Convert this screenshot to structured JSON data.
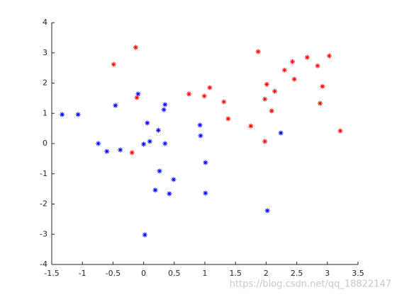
{
  "chart_data": {
    "type": "scatter",
    "xlim": [
      -1.5,
      3.5
    ],
    "xticks": [
      -1.5,
      -1,
      -0.5,
      0,
      0.5,
      1,
      1.5,
      2,
      2.5,
      3,
      3.5
    ],
    "ylim": [
      -4,
      4
    ],
    "yticks": [
      -4,
      -3,
      -2,
      -1,
      0,
      1,
      2,
      3,
      4
    ],
    "series": [
      {
        "color": "#0000ff",
        "x": [
          -1.33,
          -1.07,
          -0.74,
          -0.6,
          -0.46,
          -0.38,
          -0.09,
          0.0,
          0.06,
          0.1,
          0.24,
          0.33,
          0.35,
          0.35,
          0.26,
          0.19,
          0.42,
          0.49,
          0.02,
          0.92,
          0.93,
          1.01,
          1.01,
          2.02,
          2.24
        ],
        "values": [
          0.96,
          0.96,
          0.0,
          -0.26,
          1.26,
          -0.21,
          1.64,
          -0.02,
          0.68,
          0.07,
          0.44,
          1.12,
          1.29,
          0.0,
          -0.91,
          -1.54,
          -1.66,
          -1.19,
          -3.02,
          0.61,
          0.26,
          -0.63,
          -1.64,
          -2.22,
          0.35
        ]
      },
      {
        "color": "#ff0000",
        "x": [
          -0.49,
          -0.13,
          -0.11,
          -0.19,
          0.74,
          0.99,
          1.08,
          1.31,
          1.38,
          1.75,
          1.87,
          2.01,
          1.98,
          1.98,
          2.09,
          2.14,
          2.3,
          2.43,
          2.46,
          2.67,
          2.84,
          2.88,
          2.92,
          3.03,
          3.21
        ],
        "values": [
          2.62,
          3.18,
          1.52,
          -0.3,
          1.64,
          1.57,
          1.85,
          1.38,
          0.82,
          0.58,
          3.04,
          1.96,
          1.47,
          0.07,
          1.08,
          1.73,
          2.43,
          2.71,
          2.13,
          2.85,
          2.57,
          1.33,
          1.89,
          2.9,
          0.42
        ]
      }
    ]
  },
  "watermark": "https://blog.csdn.net/qq_18822147"
}
